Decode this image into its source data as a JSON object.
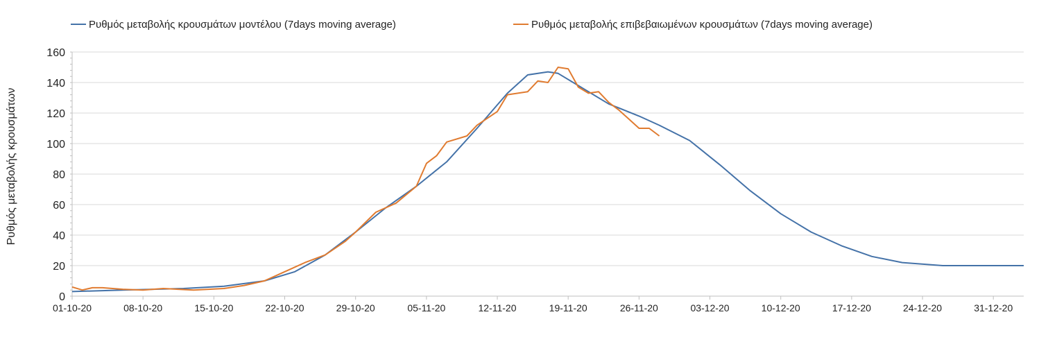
{
  "chart_data": {
    "type": "line",
    "title": "",
    "xlabel": "",
    "ylabel": "Ρυθμός μεταβολής κρουσμάτων",
    "ylim": [
      0,
      160
    ],
    "yticks": [
      "0",
      "20",
      "40",
      "60",
      "80",
      "100",
      "120",
      "140",
      "160"
    ],
    "xlim": [
      "01-10-20",
      "03-01-21"
    ],
    "xticks": [
      "01-10-20",
      "08-10-20",
      "15-10-20",
      "22-10-20",
      "29-10-20",
      "05-11-20",
      "12-11-20",
      "19-11-20",
      "26-11-20",
      "03-12-20",
      "10-12-20",
      "17-12-20",
      "24-12-20",
      "31-12-20"
    ],
    "grid": "horizontal",
    "legend_position": "top",
    "series": [
      {
        "name": "Ρυθμός μεταβολής κρουσμάτων μοντέλου (7days moving average)",
        "color": "#4472A8",
        "points": [
          [
            "01-10-20",
            3
          ],
          [
            "06-10-20",
            4
          ],
          [
            "12-10-20",
            5
          ],
          [
            "16-10-20",
            6.5
          ],
          [
            "20-10-20",
            10
          ],
          [
            "23-10-20",
            16
          ],
          [
            "26-10-20",
            27
          ],
          [
            "29-10-20",
            42
          ],
          [
            "01-11-20",
            58
          ],
          [
            "04-11-20",
            72
          ],
          [
            "07-11-20",
            88
          ],
          [
            "10-11-20",
            110
          ],
          [
            "13-11-20",
            133
          ],
          [
            "15-11-20",
            145
          ],
          [
            "17-11-20",
            147
          ],
          [
            "18-11-20",
            146
          ],
          [
            "20-11-20",
            138
          ],
          [
            "23-11-20",
            126
          ],
          [
            "26-11-20",
            118
          ],
          [
            "28-11-20",
            112
          ],
          [
            "01-12-20",
            102
          ],
          [
            "04-12-20",
            86
          ],
          [
            "07-12-20",
            69
          ],
          [
            "10-12-20",
            54
          ],
          [
            "13-12-20",
            42
          ],
          [
            "16-12-20",
            33
          ],
          [
            "19-12-20",
            26
          ],
          [
            "22-12-20",
            22
          ],
          [
            "26-12-20",
            20
          ],
          [
            "03-01-21",
            20
          ]
        ]
      },
      {
        "name": "Ρυθμός μεταβολής επιβεβαιωμένων κρουσμάτων (7days moving average)",
        "color": "#E07B30",
        "points": [
          [
            "01-10-20",
            6
          ],
          [
            "02-10-20",
            4
          ],
          [
            "03-10-20",
            5.5
          ],
          [
            "04-10-20",
            5.5
          ],
          [
            "06-10-20",
            4.5
          ],
          [
            "08-10-20",
            4
          ],
          [
            "10-10-20",
            5
          ],
          [
            "13-10-20",
            4
          ],
          [
            "16-10-20",
            5
          ],
          [
            "18-10-20",
            7
          ],
          [
            "20-10-20",
            10
          ],
          [
            "22-10-20",
            16
          ],
          [
            "24-10-20",
            22
          ],
          [
            "26-10-20",
            27
          ],
          [
            "28-10-20",
            36
          ],
          [
            "29-10-20",
            42
          ],
          [
            "31-10-20",
            55
          ],
          [
            "02-11-20",
            61
          ],
          [
            "04-11-20",
            72
          ],
          [
            "05-11-20",
            87
          ],
          [
            "06-11-20",
            92
          ],
          [
            "07-11-20",
            101
          ],
          [
            "09-11-20",
            105
          ],
          [
            "10-11-20",
            112
          ],
          [
            "12-11-20",
            121
          ],
          [
            "13-11-20",
            132
          ],
          [
            "15-11-20",
            134
          ],
          [
            "16-11-20",
            141
          ],
          [
            "17-11-20",
            140
          ],
          [
            "18-11-20",
            150
          ],
          [
            "19-11-20",
            149
          ],
          [
            "20-11-20",
            137
          ],
          [
            "21-11-20",
            133
          ],
          [
            "22-11-20",
            134
          ],
          [
            "23-11-20",
            127
          ],
          [
            "24-11-20",
            122
          ],
          [
            "25-11-20",
            116
          ],
          [
            "26-11-20",
            110
          ],
          [
            "27-11-20",
            110
          ],
          [
            "28-11-20",
            105
          ]
        ]
      }
    ]
  }
}
